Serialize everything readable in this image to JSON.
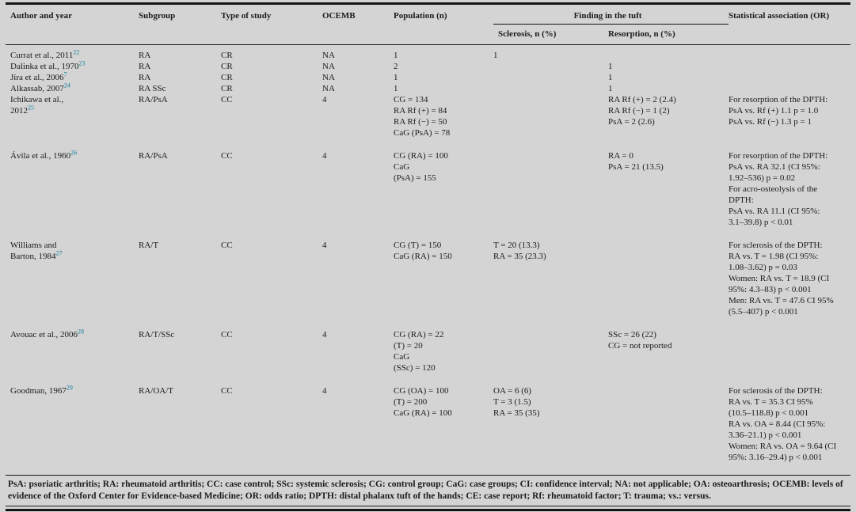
{
  "colors": {
    "citation": "#17809e",
    "text": "#1b1b1b",
    "background": "#d4d4d4",
    "rule": "#141414"
  },
  "table": {
    "header": {
      "col_author": "Author and year",
      "col_subgroup": "Subgroup",
      "col_type": "Type of study",
      "col_ocemb": "OCEMB",
      "col_population": "Population (n)",
      "col_finding": "Finding in the tuft",
      "col_sclerosis": "Sclerosis, n (%)",
      "col_resorption": "Resorption, n (%)",
      "col_statistical": "Statistical association (OR)"
    },
    "rows": [
      {
        "author": [
          {
            "text": "Currat et al., 2011",
            "sup": "22"
          }
        ],
        "subgroup": "RA",
        "study_type": "CR",
        "ocemb": "NA",
        "population": [
          "1"
        ],
        "sclerosis": [
          "1"
        ],
        "resorption": [],
        "statistical": []
      },
      {
        "author": [
          {
            "text": "Dalinka et al., 1970",
            "sup": "23"
          }
        ],
        "subgroup": "RA",
        "study_type": "CR",
        "ocemb": "NA",
        "population": [
          "2"
        ],
        "sclerosis": [],
        "resorption": [
          "1"
        ],
        "statistical": []
      },
      {
        "author": [
          {
            "text": "Jíra et al., 2006",
            "sup": "7"
          }
        ],
        "subgroup": "RA",
        "study_type": "CR",
        "ocemb": "NA",
        "population": [
          "1"
        ],
        "sclerosis": [],
        "resorption": [
          "1"
        ],
        "statistical": []
      },
      {
        "author": [
          {
            "text": "Alkassab, 2007",
            "sup": "24"
          }
        ],
        "subgroup": "RA SSc",
        "study_type": "CR",
        "ocemb": "NA",
        "population": [
          "1"
        ],
        "sclerosis": [],
        "resorption": [
          "1"
        ],
        "statistical": []
      },
      {
        "author": [
          {
            "text": "Ichikawa et al.,",
            "sup": ""
          },
          {
            "text": "2012",
            "sup": "25"
          }
        ],
        "subgroup": "RA/PsA",
        "study_type": "CC",
        "ocemb": "4",
        "population": [
          "CG = 134",
          "RA Rf (+) = 84",
          "RA Rf (−) = 50",
          "CaG (PsA) = 78"
        ],
        "sclerosis": [],
        "resorption": [
          "RA Rf (+) = 2 (2.4)",
          "RA Rf (−) = 1 (2)",
          "PsA = 2 (2.6)"
        ],
        "statistical": [
          "For resorption of the DPTH:",
          "PsA vs. Rf (+) 1.1 p = 1.0",
          "PsA vs. Rf (−) 1.3 p = 1"
        ]
      },
      {
        "author": [
          {
            "text": "Ávila et al., 1960",
            "sup": "26"
          }
        ],
        "subgroup": "RA/PsA",
        "study_type": "CC",
        "ocemb": "4",
        "population": [
          "CG (RA) = 100",
          "CaG",
          "(PsA) = 155"
        ],
        "sclerosis": [],
        "resorption": [
          "RA = 0",
          "PsA = 21 (13.5)"
        ],
        "statistical": [
          "For resorption of the DPTH:",
          "PsA vs. RA 32.1 (CI 95%:",
          "1.92–536) p = 0.02",
          "For acro-osteolysis of the",
          "DPTH:",
          "PsA vs. RA 11.1 (CI 95%:",
          "3.1–39.8) p < 0.01"
        ]
      },
      {
        "author": [
          {
            "text": "Williams and",
            "sup": ""
          },
          {
            "text": "Barton, 1984",
            "sup": "27"
          }
        ],
        "subgroup": "RA/T",
        "study_type": "CC",
        "ocemb": "4",
        "population": [
          "CG (T) = 150",
          "CaG (RA) = 150"
        ],
        "sclerosis": [
          "T = 20 (13.3)",
          "RA = 35 (23.3)"
        ],
        "resorption": [],
        "statistical": [
          "For sclerosis of the DPTH:",
          "RA vs. T = 1.98 (CI 95%:",
          "1.08–3.62) p = 0.03",
          "Women: RA vs. T = 18.9 (CI",
          "95%: 4.3–83) p < 0.001",
          "Men: RA vs. T = 47.6 CI 95%",
          "(5.5–407) p < 0.001"
        ]
      },
      {
        "author": [
          {
            "text": "Avouac et al., 2006",
            "sup": "28"
          }
        ],
        "subgroup": "RA/T/SSc",
        "study_type": "CC",
        "ocemb": "4",
        "population": [
          "CG (RA) = 22",
          "(T) = 20",
          "CaG",
          "(SSc) = 120"
        ],
        "sclerosis": [],
        "resorption": [
          "SSc = 26 (22)",
          "CG = not reported"
        ],
        "statistical": []
      },
      {
        "author": [
          {
            "text": "Goodman, 1967",
            "sup": "29"
          }
        ],
        "subgroup": "RA/OA/T",
        "study_type": "CC",
        "ocemb": "4",
        "population": [
          "CG (OA) = 100",
          "(T) = 200",
          "CaG (RA) = 100"
        ],
        "sclerosis": [
          "OA = 6 (6)",
          "T = 3 (1.5)",
          "RA = 35 (35)"
        ],
        "resorption": [],
        "statistical": [
          "For sclerosis of the DPTH:",
          "RA vs. T = 35.3 CI 95%",
          "(10.5–118.8) p < 0.001",
          "RA vs. OA = 8.44 (CI 95%:",
          "3.36–21.1) p < 0.001",
          "Women: RA vs. OA = 9.64 (CI",
          "95%: 3.16–29.4) p < 0.001"
        ]
      }
    ],
    "footnote": "PsA: psoriatic arthritis; RA: rheumatoid arthritis; CC: case control; SSc: systemic sclerosis; CG: control group; CaG: case groups; CI: confidence interval; NA: not applicable; OA: osteoarthrosis; OCEMB: levels of evidence of the Oxford Center for Evidence-based Medicine; OR: odds ratio; DPTH: distal phalanx tuft of the hands; CE: case report; Rf: rheumatoid factor; T: trauma; vs.: versus."
  }
}
